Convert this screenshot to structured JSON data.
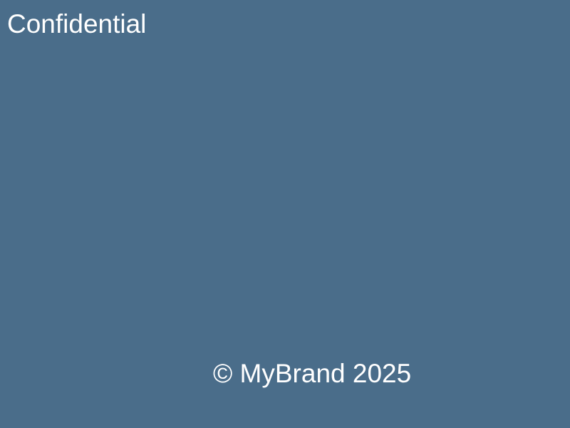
{
  "page": {
    "background_color": "#4a6d8a",
    "text_color": "#ffffff"
  },
  "header": {
    "label": "Confidential"
  },
  "footer": {
    "copyright": "© MyBrand 2025"
  }
}
